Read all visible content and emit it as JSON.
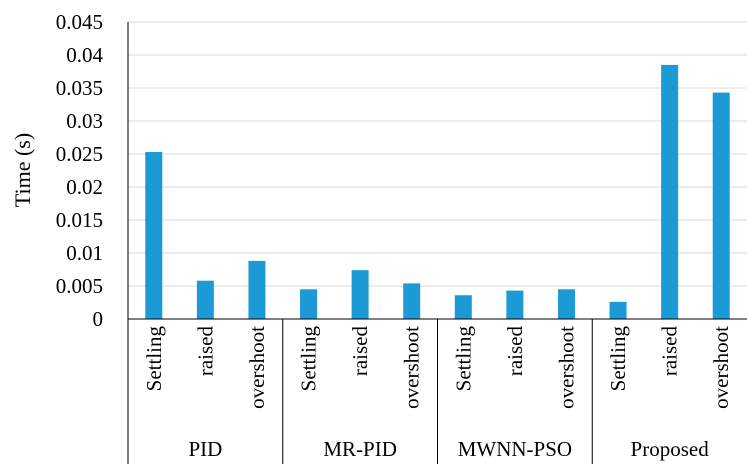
{
  "chart_data": {
    "type": "bar",
    "title": "",
    "xlabel": "",
    "ylabel": "Time (s)",
    "ylim": [
      0,
      0.045
    ],
    "yticks": [
      "0",
      "0.005",
      "0.01",
      "0.015",
      "0.02",
      "0.025",
      "0.03",
      "0.035",
      "0.04",
      "0.045"
    ],
    "grid": true,
    "legend": "none",
    "bar_color": "#1b9ad6",
    "groups": [
      {
        "name": "PID",
        "categories": [
          "Settling",
          "raised",
          "overshoot"
        ],
        "values": [
          0.0253,
          0.0058,
          0.0088
        ]
      },
      {
        "name": "MR-PID",
        "categories": [
          "Settling",
          "raised",
          "overshoot"
        ],
        "values": [
          0.0045,
          0.0074,
          0.0054
        ]
      },
      {
        "name": "MWNN-PSO",
        "categories": [
          "Settling",
          "raised",
          "overshoot"
        ],
        "values": [
          0.0036,
          0.0043,
          0.0045
        ]
      },
      {
        "name": "Proposed",
        "categories": [
          "Settling",
          "raised",
          "overshoot"
        ],
        "values": [
          0.0026,
          0.0385,
          0.0343
        ]
      }
    ]
  }
}
